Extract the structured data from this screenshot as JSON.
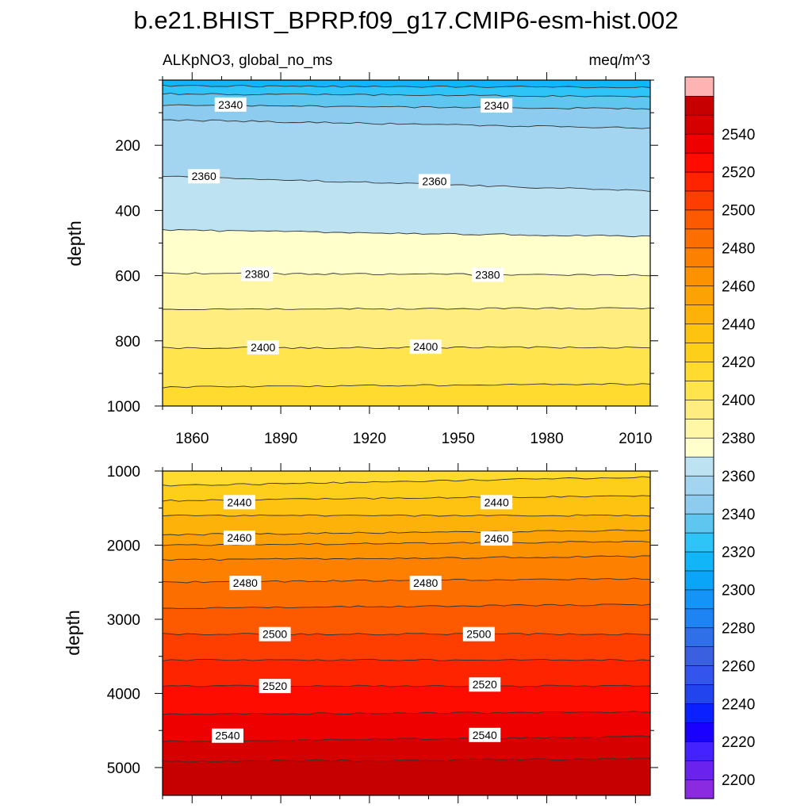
{
  "title": "b.e21.BHIST_BPRP.f09_g17.CMIP6-esm-hist.002",
  "chart_data": [
    {
      "type": "contour",
      "panel": "upper",
      "variable": "ALKpNO3, global_no_ms",
      "units": "meq/m^3",
      "xlabel": "",
      "ylabel": "depth",
      "xlim": [
        1850,
        2015
      ],
      "ylim": [
        0,
        1000
      ],
      "y_reversed": true,
      "xticks": [
        "1860",
        "1890",
        "1920",
        "1950",
        "1980",
        "2010"
      ],
      "yticks": [
        "200",
        "400",
        "600",
        "800",
        "1000"
      ],
      "contour_levels": [
        2320,
        2330,
        2340,
        2350,
        2360,
        2370,
        2380,
        2390,
        2400,
        2410
      ],
      "contours": [
        {
          "level": 2320,
          "depth_start": 18,
          "depth_end": 22
        },
        {
          "level": 2330,
          "depth_start": 42,
          "depth_end": 50
        },
        {
          "level": 2340,
          "depth_start": 77,
          "depth_end": 88
        },
        {
          "level": 2350,
          "depth_start": 122,
          "depth_end": 148
        },
        {
          "level": 2360,
          "depth_start": 295,
          "depth_end": 340
        },
        {
          "level": 2370,
          "depth_start": 460,
          "depth_end": 480
        },
        {
          "level": 2380,
          "depth_start": 593,
          "depth_end": 598
        },
        {
          "level": 2390,
          "depth_start": 703,
          "depth_end": 700
        },
        {
          "level": 2400,
          "depth_start": 822,
          "depth_end": 820
        },
        {
          "level": 2410,
          "depth_start": 942,
          "depth_end": 932
        }
      ],
      "contour_labels": [
        {
          "text": "2340",
          "x": 1873,
          "depth": 75
        },
        {
          "text": "2340",
          "x": 1963,
          "depth": 78
        },
        {
          "text": "2360",
          "x": 1864,
          "depth": 295
        },
        {
          "text": "2360",
          "x": 1942,
          "depth": 310
        },
        {
          "text": "2380",
          "x": 1882,
          "depth": 595
        },
        {
          "text": "2380",
          "x": 1960,
          "depth": 597
        },
        {
          "text": "2400",
          "x": 1884,
          "depth": 820
        },
        {
          "text": "2400",
          "x": 1939,
          "depth": 818
        }
      ]
    },
    {
      "type": "contour",
      "panel": "lower",
      "variable": "",
      "units": "",
      "xlabel": "",
      "ylabel": "depth",
      "xlim": [
        1850,
        2015
      ],
      "ylim": [
        1000,
        5375
      ],
      "y_reversed": true,
      "xticks": [],
      "yticks": [
        "1000",
        "2000",
        "3000",
        "4000",
        "5000"
      ],
      "contour_levels": [
        2420,
        2430,
        2440,
        2450,
        2460,
        2470,
        2480,
        2490,
        2500,
        2510,
        2520,
        2530,
        2540,
        2550
      ],
      "contours": [
        {
          "level": 2420,
          "depth_start": 1200,
          "depth_end": 1080
        },
        {
          "level": 2430,
          "depth_start": 1400,
          "depth_end": 1330
        },
        {
          "level": 2440,
          "depth_start": 1600,
          "depth_end": 1600
        },
        {
          "level": 2450,
          "depth_start": 1860,
          "depth_end": 1800
        },
        {
          "level": 2460,
          "depth_start": 2000,
          "depth_end": 1950
        },
        {
          "level": 2470,
          "depth_start": 2200,
          "depth_end": 2150
        },
        {
          "level": 2480,
          "depth_start": 2500,
          "depth_end": 2450
        },
        {
          "level": 2490,
          "depth_start": 2850,
          "depth_end": 2800
        },
        {
          "level": 2500,
          "depth_start": 3200,
          "depth_end": 3200
        },
        {
          "level": 2510,
          "depth_start": 3550,
          "depth_end": 3550
        },
        {
          "level": 2520,
          "depth_start": 3900,
          "depth_end": 3900
        },
        {
          "level": 2530,
          "depth_start": 4280,
          "depth_end": 4250
        },
        {
          "level": 2540,
          "depth_start": 4650,
          "depth_end": 4580
        },
        {
          "level": 2550,
          "depth_start": 4920,
          "depth_end": 4880
        }
      ],
      "contour_labels": [
        {
          "text": "2440",
          "x": 1876,
          "depth": 1420
        },
        {
          "text": "2440",
          "x": 1963,
          "depth": 1420
        },
        {
          "text": "2460",
          "x": 1876,
          "depth": 1900
        },
        {
          "text": "2460",
          "x": 1963,
          "depth": 1910
        },
        {
          "text": "2480",
          "x": 1878,
          "depth": 2510
        },
        {
          "text": "2480",
          "x": 1939,
          "depth": 2510
        },
        {
          "text": "2500",
          "x": 1888,
          "depth": 3200
        },
        {
          "text": "2500",
          "x": 1957,
          "depth": 3200
        },
        {
          "text": "2520",
          "x": 1888,
          "depth": 3900
        },
        {
          "text": "2520",
          "x": 1959,
          "depth": 3880
        },
        {
          "text": "2540",
          "x": 1872,
          "depth": 4570
        },
        {
          "text": "2540",
          "x": 1959,
          "depth": 4560
        }
      ]
    }
  ],
  "colorbar": {
    "levels": [
      2190,
      2200,
      2210,
      2220,
      2230,
      2240,
      2250,
      2260,
      2270,
      2280,
      2290,
      2300,
      2310,
      2320,
      2330,
      2340,
      2350,
      2360,
      2370,
      2380,
      2390,
      2400,
      2410,
      2420,
      2430,
      2440,
      2450,
      2460,
      2470,
      2480,
      2490,
      2500,
      2510,
      2520,
      2530,
      2540,
      2550,
      2560
    ],
    "labels": [
      "2200",
      "2220",
      "2240",
      "2260",
      "2280",
      "2300",
      "2320",
      "2340",
      "2360",
      "2380",
      "2400",
      "2420",
      "2440",
      "2460",
      "2480",
      "2500",
      "2520",
      "2540"
    ],
    "colors": [
      "#8a2be2",
      "#6a22ee",
      "#4422ff",
      "#1a00ff",
      "#0a20ff",
      "#2244ee",
      "#3355ee",
      "#3a60e0",
      "#2f70e8",
      "#1f84f3",
      "#1494f6",
      "#0aa4f8",
      "#12b6f8",
      "#2ec4f8",
      "#5ec6ef",
      "#8dcbef",
      "#a3d5f0",
      "#bde3f3",
      "#ffffcc",
      "#fff7a6",
      "#ffed80",
      "#ffe44d",
      "#ffda2f",
      "#fecf1a",
      "#fec210",
      "#fdb20a",
      "#fda204",
      "#fd9200",
      "#fd8000",
      "#fd6e00",
      "#fd5a00",
      "#fd3e00",
      "#fe2400",
      "#fe0c00",
      "#ee0000",
      "#d60000",
      "#c60000",
      "#ffffff"
    ]
  }
}
